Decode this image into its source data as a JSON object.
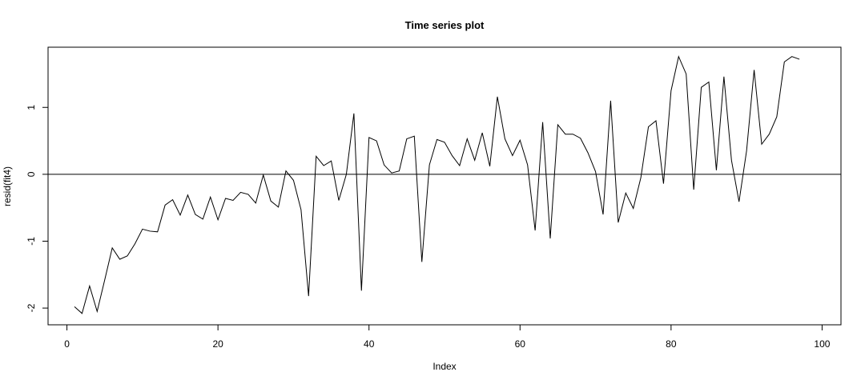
{
  "chart_data": {
    "type": "line",
    "title": "Time series plot",
    "xlabel": "Index",
    "ylabel": "resid(fit4)",
    "xlim": [
      -2.5,
      102.5
    ],
    "ylim": [
      -2.25,
      1.9
    ],
    "x_ticks": [
      0,
      20,
      40,
      60,
      80,
      100
    ],
    "y_ticks": [
      -2,
      -1,
      0,
      1
    ],
    "reference_line": 0,
    "grid": false,
    "series": [
      {
        "color": "#000000",
        "x": [
          1,
          2,
          3,
          4,
          5,
          6,
          7,
          8,
          9,
          10,
          11,
          12,
          13,
          14,
          15,
          16,
          17,
          18,
          19,
          20,
          21,
          22,
          23,
          24,
          25,
          26,
          27,
          28,
          29,
          30,
          31,
          32,
          33,
          34,
          35,
          36,
          37,
          38,
          39,
          40,
          41,
          42,
          43,
          44,
          45,
          46,
          47,
          48,
          49,
          50,
          51,
          52,
          53,
          54,
          55,
          56,
          57,
          58,
          59,
          60,
          61,
          62,
          63,
          64,
          65,
          66,
          67,
          68,
          69,
          70,
          71,
          72,
          73,
          74,
          75,
          76,
          77,
          78,
          79,
          80,
          81,
          82,
          83,
          84,
          85,
          86,
          87,
          88,
          89,
          90,
          91,
          92,
          93,
          94,
          95,
          96,
          97
        ],
        "values": [
          -1.98,
          -2.08,
          -1.67,
          -2.05,
          -1.58,
          -1.1,
          -1.27,
          -1.22,
          -1.04,
          -0.82,
          -0.85,
          -0.86,
          -0.46,
          -0.38,
          -0.61,
          -0.31,
          -0.6,
          -0.67,
          -0.34,
          -0.68,
          -0.36,
          -0.39,
          -0.27,
          -0.3,
          -0.43,
          -0.01,
          -0.4,
          -0.49,
          0.05,
          -0.09,
          -0.53,
          -1.82,
          0.27,
          0.13,
          0.2,
          -0.39,
          0.0,
          0.91,
          -1.74,
          0.55,
          0.5,
          0.14,
          0.02,
          0.05,
          0.53,
          0.57,
          -1.31,
          0.14,
          0.52,
          0.48,
          0.28,
          0.13,
          0.53,
          0.21,
          0.62,
          0.12,
          1.16,
          0.53,
          0.28,
          0.51,
          0.14,
          -0.84,
          0.78,
          -0.96,
          0.74,
          0.6,
          0.6,
          0.54,
          0.32,
          0.04,
          -0.6,
          1.1,
          -0.72,
          -0.28,
          -0.51,
          -0.05,
          0.71,
          0.8,
          -0.14,
          1.25,
          1.76,
          1.5,
          -0.23,
          1.3,
          1.38,
          0.06,
          1.46,
          0.21,
          -0.41,
          0.35,
          1.56,
          0.45,
          0.6,
          0.86,
          1.68,
          1.76,
          1.72
        ]
      }
    ]
  }
}
